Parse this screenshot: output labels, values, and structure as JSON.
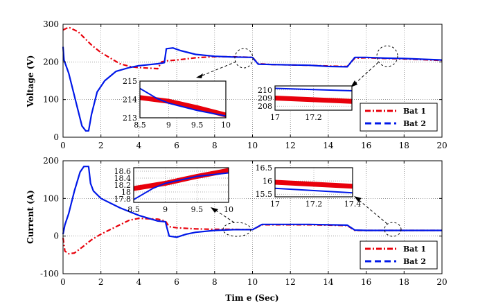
{
  "chart_data": [
    {
      "type": "line",
      "name": "voltage",
      "ylabel": "Voltage (V)",
      "xlabel": "",
      "xlim": [
        0,
        20
      ],
      "ylim": [
        0,
        300
      ],
      "xticks": [
        0,
        2,
        4,
        6,
        8,
        10,
        12,
        14,
        16,
        18,
        20
      ],
      "yticks": [
        0,
        100,
        200,
        300
      ],
      "grid": true,
      "legend": "bottom-right",
      "series": [
        {
          "name": "Bat 1",
          "color": "#e8000b",
          "style": "dash-dot",
          "points": [
            [
              0,
              285
            ],
            [
              0.3,
              292
            ],
            [
              0.8,
              280
            ],
            [
              1.5,
              245
            ],
            [
              2,
              225
            ],
            [
              3,
              195
            ],
            [
              3.6,
              187
            ],
            [
              4,
              185
            ],
            [
              5,
              182
            ],
            [
              5.2,
              200
            ],
            [
              5.5,
              203
            ],
            [
              6,
              205
            ],
            [
              7,
              211
            ],
            [
              8,
              214
            ],
            [
              9,
              213.5
            ],
            [
              10,
              212
            ],
            [
              10.3,
              195
            ],
            [
              11,
              193
            ],
            [
              12,
              192
            ],
            [
              13,
              191
            ],
            [
              14,
              189
            ],
            [
              15,
              188
            ],
            [
              15.4,
              210
            ],
            [
              16,
              211
            ],
            [
              17,
              209
            ],
            [
              18,
              208
            ],
            [
              19,
              206
            ],
            [
              20,
              204
            ]
          ]
        },
        {
          "name": "Bat 2",
          "color": "#0018e8",
          "style": "solid",
          "points": [
            [
              0,
              240
            ],
            [
              0.05,
              205
            ],
            [
              0.3,
              170
            ],
            [
              0.7,
              90
            ],
            [
              1.0,
              30
            ],
            [
              1.2,
              17
            ],
            [
              1.35,
              17
            ],
            [
              1.5,
              60
            ],
            [
              1.8,
              120
            ],
            [
              2.2,
              150
            ],
            [
              2.8,
              175
            ],
            [
              3.5,
              185
            ],
            [
              4,
              190
            ],
            [
              5,
              195
            ],
            [
              5.35,
              198
            ],
            [
              5.45,
              235
            ],
            [
              5.8,
              237
            ],
            [
              6.2,
              230
            ],
            [
              7,
              220
            ],
            [
              8,
              215
            ],
            [
              9,
              213
            ],
            [
              10,
              212
            ],
            [
              10.3,
              194
            ],
            [
              11,
              193
            ],
            [
              12,
              192
            ],
            [
              13,
              191
            ],
            [
              14,
              188
            ],
            [
              15,
              187
            ],
            [
              15.4,
              212
            ],
            [
              16,
              212
            ],
            [
              17,
              210
            ],
            [
              18,
              209
            ],
            [
              19,
              207
            ],
            [
              20,
              205
            ]
          ]
        }
      ]
    },
    {
      "type": "line",
      "name": "current",
      "ylabel": "Current (A)",
      "xlabel": "Tim e (Sec)",
      "xlim": [
        0,
        20
      ],
      "ylim": [
        -100,
        200
      ],
      "xticks": [
        0,
        2,
        4,
        6,
        8,
        10,
        12,
        14,
        16,
        18,
        20
      ],
      "yticks": [
        -100,
        0,
        100,
        200
      ],
      "grid": true,
      "legend": "bottom-right",
      "series": [
        {
          "name": "Bat 1",
          "color": "#e8000b",
          "style": "dash-dot",
          "points": [
            [
              0,
              -5
            ],
            [
              0.1,
              -40
            ],
            [
              0.3,
              -47
            ],
            [
              0.6,
              -45
            ],
            [
              1,
              -30
            ],
            [
              1.5,
              -10
            ],
            [
              2,
              5
            ],
            [
              3,
              30
            ],
            [
              3.5,
              42
            ],
            [
              4,
              47
            ],
            [
              5,
              45
            ],
            [
              5.4,
              40
            ],
            [
              5.6,
              25
            ],
            [
              6,
              22
            ],
            [
              7,
              19
            ],
            [
              8,
              18
            ],
            [
              9,
              18
            ],
            [
              10,
              17
            ],
            [
              10.5,
              30
            ],
            [
              11,
              30
            ],
            [
              12,
              30
            ],
            [
              13,
              30
            ],
            [
              14,
              29
            ],
            [
              15,
              28
            ],
            [
              15.4,
              15
            ],
            [
              16,
              15
            ],
            [
              17,
              15
            ],
            [
              18,
              15
            ],
            [
              19,
              15
            ],
            [
              20,
              15
            ]
          ]
        },
        {
          "name": "Bat 2",
          "color": "#0018e8",
          "style": "solid",
          "points": [
            [
              0,
              5
            ],
            [
              0.1,
              30
            ],
            [
              0.3,
              60
            ],
            [
              0.6,
              120
            ],
            [
              0.9,
              170
            ],
            [
              1.1,
              185
            ],
            [
              1.35,
              185
            ],
            [
              1.45,
              140
            ],
            [
              1.6,
              120
            ],
            [
              2,
              100
            ],
            [
              3,
              75
            ],
            [
              4,
              55
            ],
            [
              5,
              40
            ],
            [
              5.4,
              38
            ],
            [
              5.6,
              0
            ],
            [
              6,
              -3
            ],
            [
              6.5,
              5
            ],
            [
              7,
              10
            ],
            [
              8,
              15
            ],
            [
              9,
              17
            ],
            [
              10,
              17
            ],
            [
              10.5,
              31
            ],
            [
              11,
              31
            ],
            [
              12,
              31
            ],
            [
              13,
              31
            ],
            [
              14,
              30
            ],
            [
              15,
              29
            ],
            [
              15.4,
              16
            ],
            [
              16,
              15
            ],
            [
              17,
              15
            ],
            [
              18,
              15
            ],
            [
              19,
              15
            ],
            [
              20,
              15
            ]
          ]
        }
      ]
    }
  ],
  "insets": [
    {
      "name": "voltage-inset-a",
      "xlim": [
        8.5,
        10
      ],
      "ylim": [
        213,
        215
      ],
      "xticks": [
        8.5,
        9,
        9.5,
        10
      ],
      "xtick_labels": [
        "8.5",
        "9",
        "9.5",
        "10"
      ],
      "yticks": [
        213,
        214,
        215
      ],
      "ytick_labels": [
        "213",
        "214",
        "215"
      ],
      "series": [
        {
          "name": "Bat 1",
          "color": "#e8000b",
          "thick": true,
          "points": [
            [
              8.5,
              214.1
            ],
            [
              9,
              213.9
            ],
            [
              9.5,
              213.55
            ],
            [
              10,
              213.15
            ]
          ]
        },
        {
          "name": "Bat 2",
          "color": "#0018e8",
          "thick": false,
          "points": [
            [
              8.5,
              214.6
            ],
            [
              8.8,
              214.05
            ],
            [
              9,
              213.8
            ],
            [
              9.5,
              213.4
            ],
            [
              10,
              213.1
            ]
          ]
        }
      ]
    },
    {
      "name": "voltage-inset-b",
      "xlim": [
        17,
        17.4
      ],
      "ylim": [
        207.5,
        210.5
      ],
      "xticks": [
        17,
        17.2
      ],
      "xtick_labels": [
        "17",
        "17.2"
      ],
      "yticks": [
        208,
        209,
        210
      ],
      "ytick_labels": [
        "208",
        "209",
        "210"
      ],
      "series": [
        {
          "name": "Bat 1",
          "color": "#e8000b",
          "thick": true,
          "points": [
            [
              17,
              209
            ],
            [
              17.4,
              208.6
            ]
          ]
        },
        {
          "name": "Bat 2",
          "color": "#0018e8",
          "thick": false,
          "points": [
            [
              17,
              210.2
            ],
            [
              17.4,
              209.9
            ]
          ]
        }
      ]
    },
    {
      "name": "current-inset-a",
      "xlim": [
        8.5,
        10
      ],
      "ylim": [
        17.7,
        18.7
      ],
      "xticks": [
        8.5,
        9,
        9.5,
        10
      ],
      "xtick_labels": [
        "8.5",
        "9",
        "9.5",
        "10"
      ],
      "yticks": [
        17.8,
        18,
        18.2,
        18.4,
        18.6
      ],
      "ytick_labels": [
        "17.8",
        "18",
        "18.2",
        "18.4",
        "18.6"
      ],
      "series": [
        {
          "name": "Bat 1",
          "color": "#e8000b",
          "thick": true,
          "points": [
            [
              8.5,
              18.1
            ],
            [
              9,
              18.25
            ],
            [
              9.5,
              18.45
            ],
            [
              10,
              18.62
            ]
          ]
        },
        {
          "name": "Bat 2",
          "color": "#0018e8",
          "thick": false,
          "points": [
            [
              8.5,
              17.78
            ],
            [
              8.8,
              18.1
            ],
            [
              9,
              18.25
            ],
            [
              9.5,
              18.45
            ],
            [
              10,
              18.55
            ]
          ]
        }
      ]
    },
    {
      "name": "current-inset-b",
      "xlim": [
        17,
        17.4
      ],
      "ylim": [
        15.4,
        16.5
      ],
      "xticks": [
        17,
        17.2,
        17.4
      ],
      "xtick_labels": [
        "17",
        "17.2",
        "17.4"
      ],
      "yticks": [
        15.5,
        16,
        16.5
      ],
      "ytick_labels": [
        "15.5",
        "16",
        "16.5"
      ],
      "series": [
        {
          "name": "Bat 1",
          "color": "#e8000b",
          "thick": true,
          "points": [
            [
              17,
              15.95
            ],
            [
              17.4,
              15.8
            ]
          ]
        },
        {
          "name": "Bat 2",
          "color": "#0018e8",
          "thick": false,
          "points": [
            [
              17,
              15.72
            ],
            [
              17.4,
              15.55
            ]
          ]
        }
      ]
    }
  ],
  "legend": {
    "bat1": "Bat 1",
    "bat2": "Bat 2"
  }
}
